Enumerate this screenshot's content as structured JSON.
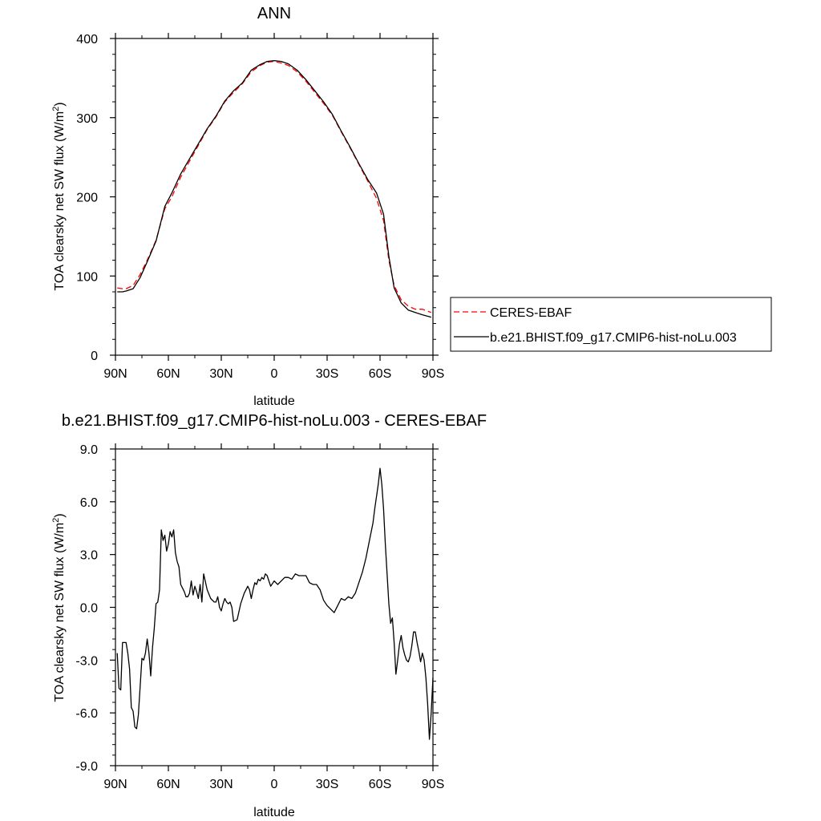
{
  "chart_data": [
    {
      "type": "line",
      "title": "ANN",
      "xlabel": "latitude",
      "ylabel": "TOA clearsky net SW flux (W/m²)",
      "ylabel_main": "TOA clearsky net SW flux (W/m",
      "ylabel_sup": "2",
      "ylabel_close": ")",
      "xlim": [
        90,
        -90
      ],
      "ylim": [
        0,
        400
      ],
      "x_ticks": [
        {
          "value": 90,
          "label": "90N"
        },
        {
          "value": 60,
          "label": "60N"
        },
        {
          "value": 30,
          "label": "30N"
        },
        {
          "value": 0,
          "label": "0"
        },
        {
          "value": -30,
          "label": "30S"
        },
        {
          "value": -60,
          "label": "60S"
        },
        {
          "value": -90,
          "label": "90S"
        }
      ],
      "y_ticks": [
        {
          "value": 0,
          "label": "0"
        },
        {
          "value": 100,
          "label": "100"
        },
        {
          "value": 200,
          "label": "200"
        },
        {
          "value": 300,
          "label": "300"
        },
        {
          "value": 400,
          "label": "400"
        }
      ],
      "grid": false,
      "legend_position": "right",
      "x": [
        89,
        86,
        84,
        80,
        76,
        72,
        67,
        62,
        58,
        53,
        48,
        43,
        38,
        33,
        28,
        23,
        18,
        13,
        8,
        4,
        0,
        -4,
        -8,
        -13,
        -18,
        -23,
        -28,
        -33,
        -38,
        -43,
        -48,
        -53,
        -58,
        -62,
        -65,
        -68,
        -72,
        -76,
        -80,
        -84,
        -89
      ],
      "series": [
        {
          "name": "CERES-EBAF",
          "color": "#ff0000",
          "dash": "dashed",
          "values": [
            85,
            84,
            84,
            88,
            102,
            120,
            145,
            185,
            200,
            225,
            245,
            265,
            285,
            301,
            320,
            332,
            343,
            358,
            366,
            370,
            371,
            369,
            366,
            358,
            346,
            332,
            318,
            303,
            282,
            262,
            241,
            220,
            198,
            170,
            120,
            88,
            70,
            62,
            58,
            58,
            54
          ]
        },
        {
          "name": "b.e21.BHIST.f09_g17.CMIP6-hist-noLu.003",
          "color": "#000000",
          "dash": "solid",
          "values": [
            80,
            80,
            81,
            84,
            98,
            118,
            144,
            188,
            205,
            229,
            248,
            267,
            286,
            302,
            321,
            334,
            344,
            360,
            367,
            371,
            372,
            371,
            368,
            360,
            348,
            334,
            320,
            304,
            283,
            263,
            242,
            222,
            205,
            178,
            125,
            85,
            66,
            57,
            54,
            51,
            48
          ]
        }
      ]
    },
    {
      "type": "line",
      "title": "b.e21.BHIST.f09_g17.CMIP6-hist-noLu.003 - CERES-EBAF",
      "xlabel": "latitude",
      "ylabel": "TOA clearsky net SW flux (W/m²)",
      "ylabel_main": "TOA clearsky net SW flux (W/m",
      "ylabel_sup": "2",
      "ylabel_close": ")",
      "xlim": [
        90,
        -90
      ],
      "ylim": [
        -9,
        9
      ],
      "x_ticks": [
        {
          "value": 90,
          "label": "90N"
        },
        {
          "value": 60,
          "label": "60N"
        },
        {
          "value": 30,
          "label": "30N"
        },
        {
          "value": 0,
          "label": "0"
        },
        {
          "value": -30,
          "label": "30S"
        },
        {
          "value": -60,
          "label": "60S"
        },
        {
          "value": -90,
          "label": "90S"
        }
      ],
      "y_ticks": [
        {
          "value": -9,
          "label": "-9.0"
        },
        {
          "value": -6,
          "label": "-6.0"
        },
        {
          "value": -3,
          "label": "-3.0"
        },
        {
          "value": 0,
          "label": "0.0"
        },
        {
          "value": 3,
          "label": "3.0"
        },
        {
          "value": 6,
          "label": "6.0"
        },
        {
          "value": 9,
          "label": "9.0"
        }
      ],
      "grid": false,
      "x": [
        89,
        88,
        87,
        86,
        85,
        84,
        83,
        82,
        81,
        80,
        79,
        78,
        77,
        76,
        75,
        74,
        73,
        72,
        71,
        70,
        69,
        68,
        67,
        66,
        65,
        64,
        63,
        62,
        61,
        60,
        59,
        58,
        57,
        56,
        55,
        54,
        53,
        52,
        51,
        50,
        49,
        48,
        47,
        46,
        45,
        44,
        43,
        42,
        41,
        40,
        38,
        36,
        34,
        33,
        32,
        31,
        30,
        29,
        28,
        27,
        26,
        25,
        24,
        23,
        21,
        19,
        17,
        15,
        14,
        13,
        12,
        11,
        10,
        9,
        8,
        7,
        6,
        5,
        4,
        2,
        0,
        -2,
        -4,
        -6,
        -8,
        -10,
        -12,
        -14,
        -16,
        -18,
        -20,
        -22,
        -24,
        -26,
        -28,
        -30,
        -32,
        -34,
        -36,
        -38,
        -40,
        -42,
        -44,
        -46,
        -48,
        -50,
        -52,
        -54,
        -56,
        -57,
        -58,
        -59,
        -60,
        -61,
        -62,
        -63,
        -64,
        -65,
        -66,
        -67,
        -68,
        -69,
        -70,
        -71,
        -72,
        -73,
        -74,
        -75,
        -76,
        -77,
        -78,
        -79,
        -80,
        -81,
        -82,
        -83,
        -84,
        -85,
        -86,
        -87,
        -88,
        -89,
        -90
      ],
      "series": [
        {
          "name": "",
          "color": "#000000",
          "dash": "solid",
          "values": [
            -2.6,
            -4.6,
            -4.7,
            -2.0,
            -2.0,
            -2.0,
            -2.6,
            -3.5,
            -5.7,
            -5.9,
            -6.8,
            -6.9,
            -6.1,
            -4.5,
            -2.9,
            -3.0,
            -2.6,
            -1.8,
            -2.6,
            -3.9,
            -2.3,
            -1.2,
            0.2,
            0.3,
            1.0,
            4.4,
            3.8,
            4.1,
            3.2,
            3.6,
            4.3,
            4.0,
            4.4,
            3.1,
            2.6,
            2.3,
            1.3,
            1.1,
            0.9,
            0.6,
            0.6,
            0.8,
            1.5,
            0.7,
            1.2,
            0.9,
            0.5,
            1.3,
            0.3,
            1.9,
            1.0,
            0.5,
            0.3,
            0.3,
            0.6,
            0.0,
            -0.2,
            0.2,
            0.5,
            0.3,
            0.2,
            0.3,
            0.0,
            -0.8,
            -0.7,
            0.2,
            0.8,
            1.2,
            1.0,
            0.5,
            1.0,
            1.4,
            1.3,
            1.6,
            1.5,
            1.7,
            1.6,
            1.9,
            1.8,
            1.2,
            1.5,
            1.3,
            1.5,
            1.7,
            1.7,
            1.6,
            1.9,
            1.8,
            1.8,
            1.8,
            1.4,
            1.3,
            1.3,
            1.0,
            0.4,
            0.1,
            -0.1,
            -0.3,
            0.1,
            0.5,
            0.4,
            0.6,
            0.5,
            0.8,
            1.4,
            2.0,
            2.8,
            3.8,
            4.8,
            5.6,
            6.3,
            7.0,
            7.9,
            7.0,
            5.6,
            3.6,
            1.9,
            0.2,
            -0.9,
            -0.6,
            -2.0,
            -3.8,
            -3.0,
            -2.1,
            -1.6,
            -2.3,
            -2.7,
            -3.0,
            -3.1,
            -2.8,
            -2.2,
            -1.4,
            -1.4,
            -2.0,
            -2.5,
            -3.1,
            -2.6,
            -3.0,
            -4.0,
            -5.5,
            -7.5,
            -6.0,
            -4.0
          ]
        }
      ]
    }
  ]
}
